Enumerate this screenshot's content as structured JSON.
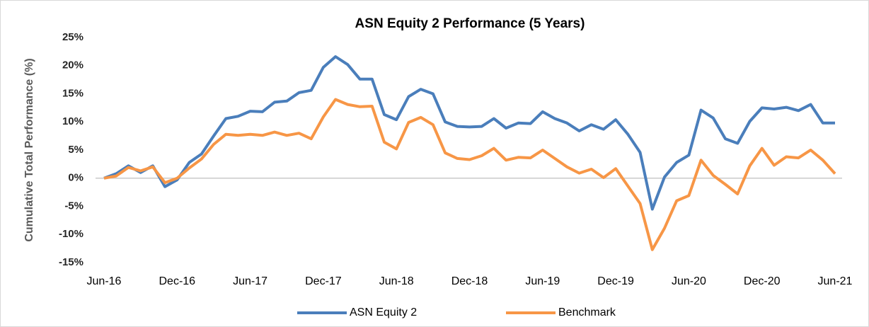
{
  "chart_data": {
    "type": "line",
    "title": "ASN Equity 2 Performance (5 Years)",
    "y_label": "Cumulative Total Performance (%)",
    "categories": [
      "Jun-16",
      null,
      null,
      null,
      null,
      null,
      "Dec-16",
      null,
      null,
      null,
      null,
      null,
      "Jun-17",
      null,
      null,
      null,
      null,
      null,
      "Dec-17",
      null,
      null,
      null,
      null,
      null,
      "Jun-18",
      null,
      null,
      null,
      null,
      null,
      "Dec-18",
      null,
      null,
      null,
      null,
      null,
      "Jun-19",
      null,
      null,
      null,
      null,
      null,
      "Dec-19",
      null,
      null,
      null,
      null,
      null,
      "Jun-20",
      null,
      null,
      null,
      null,
      null,
      "Dec-20",
      null,
      null,
      null,
      null,
      null,
      "Jun-21"
    ],
    "series": [
      {
        "name": "ASN Equity 2",
        "color": "#4a7ebb",
        "values": [
          0,
          0.8,
          2.2,
          1.0,
          2.2,
          -1.5,
          -0.3,
          2.8,
          4.3,
          7.5,
          10.6,
          11.0,
          11.9,
          11.8,
          13.5,
          13.7,
          15.2,
          15.6,
          19.7,
          21.6,
          20.2,
          17.6,
          17.6,
          11.3,
          10.4,
          14.5,
          15.8,
          15.0,
          10.0,
          9.2,
          9.1,
          9.2,
          10.6,
          8.9,
          9.8,
          9.7,
          11.8,
          10.6,
          9.8,
          8.4,
          9.5,
          8.7,
          10.4,
          7.8,
          4.6,
          -5.5,
          0.2,
          2.8,
          4.1,
          12.1,
          10.7,
          7.0,
          6.2,
          10.1,
          12.5,
          12.3,
          12.6,
          12.0,
          13.1,
          9.8,
          9.8
        ]
      },
      {
        "name": "Benchmark",
        "color": "#f79646",
        "values": [
          0,
          0.4,
          1.9,
          1.3,
          2.0,
          -0.8,
          0.0,
          1.8,
          3.4,
          6.0,
          7.8,
          7.6,
          7.8,
          7.6,
          8.2,
          7.6,
          8.0,
          7.0,
          10.9,
          14.0,
          13.1,
          12.7,
          12.8,
          6.4,
          5.2,
          9.9,
          10.8,
          9.5,
          4.5,
          3.5,
          3.3,
          4.0,
          5.3,
          3.2,
          3.7,
          3.6,
          5.0,
          3.5,
          2.0,
          0.9,
          1.6,
          0.1,
          1.7,
          -1.4,
          -4.5,
          -12.7,
          -8.9,
          -4.0,
          -3.1,
          3.2,
          0.5,
          -1.1,
          -2.8,
          2.2,
          5.3,
          2.3,
          3.8,
          3.6,
          5.0,
          3.2,
          0.8
        ]
      }
    ],
    "ylim": [
      -15,
      25
    ],
    "yticks": [
      {
        "value": -15,
        "label": "-15%"
      },
      {
        "value": -10,
        "label": "-10%"
      },
      {
        "value": -5,
        "label": "-5%"
      },
      {
        "value": 0,
        "label": "0%"
      },
      {
        "value": 5,
        "label": "5%"
      },
      {
        "value": 10,
        "label": "10%"
      },
      {
        "value": 15,
        "label": "15%"
      },
      {
        "value": 20,
        "label": "20%"
      },
      {
        "value": 25,
        "label": "25%"
      }
    ],
    "grid": false,
    "legend": "bottom"
  }
}
